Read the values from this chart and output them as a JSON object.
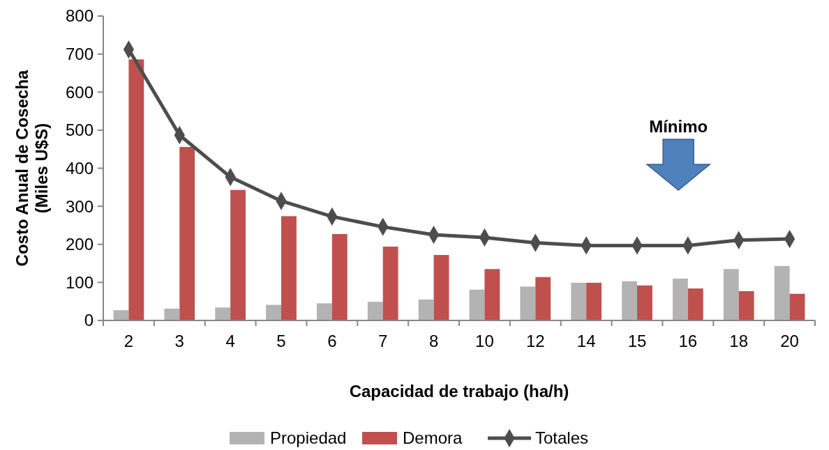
{
  "chart_data": {
    "type": "bar",
    "xlabel": "Capacidad de trabajo (ha/h)",
    "ylabel": "Costo Anual de Cosecha\n(Miles U$S)",
    "categories": [
      "2",
      "3",
      "4",
      "5",
      "6",
      "7",
      "8",
      "10",
      "12",
      "14",
      "15",
      "16",
      "18",
      "20"
    ],
    "series": [
      {
        "name": "Propiedad",
        "color": "#b3b3b3",
        "values": [
          27,
          31,
          34,
          41,
          45,
          49,
          55,
          81,
          89,
          99,
          103,
          110,
          135,
          143
        ]
      },
      {
        "name": "Demora",
        "color": "#c0504d",
        "values": [
          686,
          456,
          343,
          274,
          227,
          194,
          172,
          135,
          114,
          99,
          92,
          84,
          77,
          70
        ]
      },
      {
        "name": "Totales",
        "type": "line",
        "color": "#4d4d4d",
        "marker": "diamond",
        "values": [
          712,
          487,
          377,
          314,
          273,
          246,
          225,
          218,
          204,
          197,
          197,
          197,
          211,
          214
        ]
      }
    ],
    "ylim": [
      0,
      800
    ],
    "yticks": [
      0,
      100,
      200,
      300,
      400,
      500,
      600,
      700,
      800
    ],
    "grid": false,
    "legend": "bottom",
    "annotations": [
      "Mínimo"
    ]
  }
}
